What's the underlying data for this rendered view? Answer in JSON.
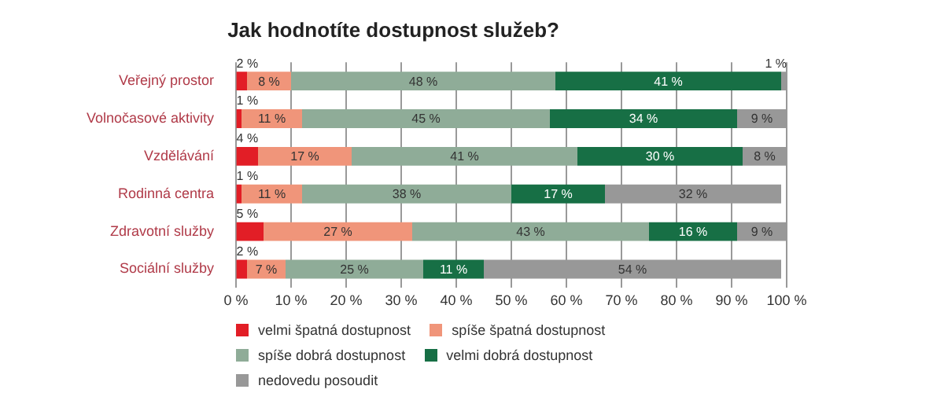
{
  "chart_data": {
    "type": "bar",
    "orientation": "horizontal",
    "stacked": true,
    "title": "Jak hodnotíte dostupnost služeb?",
    "categories": [
      "Veřejný prostor",
      "Volnočasové aktivity",
      "Vzdělávání",
      "Rodinná centra",
      "Zdravotní služby",
      "Sociální služby"
    ],
    "series": [
      {
        "name": "velmi špatná dostupnost",
        "color": "#e21e26",
        "values": [
          2,
          1,
          4,
          1,
          5,
          2
        ],
        "value_labels": [
          "2 %",
          "1 %",
          "4 %",
          "1 %",
          "5 %",
          "2 %"
        ]
      },
      {
        "name": "spíše špatná dostupnost",
        "color": "#f0957a",
        "values": [
          8,
          11,
          17,
          11,
          27,
          7
        ],
        "value_labels": [
          "8 %",
          "11 %",
          "17 %",
          "11 %",
          "27 %",
          "7 %"
        ]
      },
      {
        "name": "spíše dobrá dostupnost",
        "color": "#8fac98",
        "values": [
          48,
          45,
          41,
          38,
          43,
          25
        ],
        "value_labels": [
          "48 %",
          "45 %",
          "41 %",
          "38 %",
          "43 %",
          "25 %"
        ]
      },
      {
        "name": "velmi dobrá dostupnost",
        "color": "#176f45",
        "values": [
          41,
          34,
          30,
          17,
          16,
          11
        ],
        "value_labels": [
          "41 %",
          "34 %",
          "30 %",
          "17 %",
          "16 %",
          "11 %"
        ]
      },
      {
        "name": "nedovedu posoudit",
        "color": "#989898",
        "values": [
          1,
          9,
          8,
          32,
          9,
          54
        ],
        "value_labels": [
          "1 %",
          "9 %",
          "8 %",
          "32 %",
          "9 %",
          "54 %"
        ]
      }
    ],
    "xlim": [
      0,
      100
    ],
    "xticks": [
      {
        "value": 0,
        "label": "0 %"
      },
      {
        "value": 10,
        "label": "10 %"
      },
      {
        "value": 20,
        "label": "20 %"
      },
      {
        "value": 30,
        "label": "30 %"
      },
      {
        "value": 40,
        "label": "40 %"
      },
      {
        "value": 50,
        "label": "50 %"
      },
      {
        "value": 60,
        "label": "60 %"
      },
      {
        "value": 70,
        "label": "70 %"
      },
      {
        "value": 80,
        "label": "80 %"
      },
      {
        "value": 90,
        "label": "90 %"
      },
      {
        "value": 100,
        "label": "100 %"
      }
    ],
    "grid": "x",
    "legend": "bottom"
  }
}
